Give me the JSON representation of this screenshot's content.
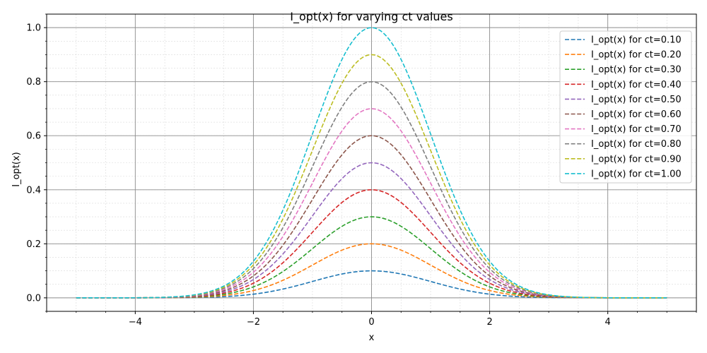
{
  "chart_data": {
    "type": "line",
    "title": "I_opt(x) for varying ct values",
    "xlabel": "x",
    "ylabel": "I_opt(x)",
    "xlim": [
      -5.5,
      5.5
    ],
    "ylim": [
      -0.05,
      1.05
    ],
    "x_ticks": [
      -4,
      -2,
      0,
      2,
      4
    ],
    "x_tick_labels": [
      "−4",
      "−2",
      "0",
      "2",
      "4"
    ],
    "y_ticks": [
      0.0,
      0.2,
      0.4,
      0.6,
      0.8,
      1.0
    ],
    "y_tick_labels": [
      "0.0",
      "0.2",
      "0.4",
      "0.6",
      "0.8",
      "1.0"
    ],
    "x_range": [
      -5,
      5
    ],
    "curve_formula": "ct * exp(-x^2 / 2)",
    "grid": true,
    "legend_position": "top-right",
    "series": [
      {
        "name": "I_opt(x) for ct=0.10",
        "ct": 0.1,
        "color": "#1f77b4"
      },
      {
        "name": "I_opt(x) for ct=0.20",
        "ct": 0.2,
        "color": "#ff7f0e"
      },
      {
        "name": "I_opt(x) for ct=0.30",
        "ct": 0.3,
        "color": "#2ca02c"
      },
      {
        "name": "I_opt(x) for ct=0.40",
        "ct": 0.4,
        "color": "#d62728"
      },
      {
        "name": "I_opt(x) for ct=0.50",
        "ct": 0.5,
        "color": "#9467bd"
      },
      {
        "name": "I_opt(x) for ct=0.60",
        "ct": 0.6,
        "color": "#8c564b"
      },
      {
        "name": "I_opt(x) for ct=0.70",
        "ct": 0.7,
        "color": "#e377c2"
      },
      {
        "name": "I_opt(x) for ct=0.80",
        "ct": 0.8,
        "color": "#7f7f7f"
      },
      {
        "name": "I_opt(x) for ct=0.90",
        "ct": 0.9,
        "color": "#bcbd22"
      },
      {
        "name": "I_opt(x) for ct=1.00",
        "ct": 1.0,
        "color": "#17becf"
      }
    ]
  }
}
